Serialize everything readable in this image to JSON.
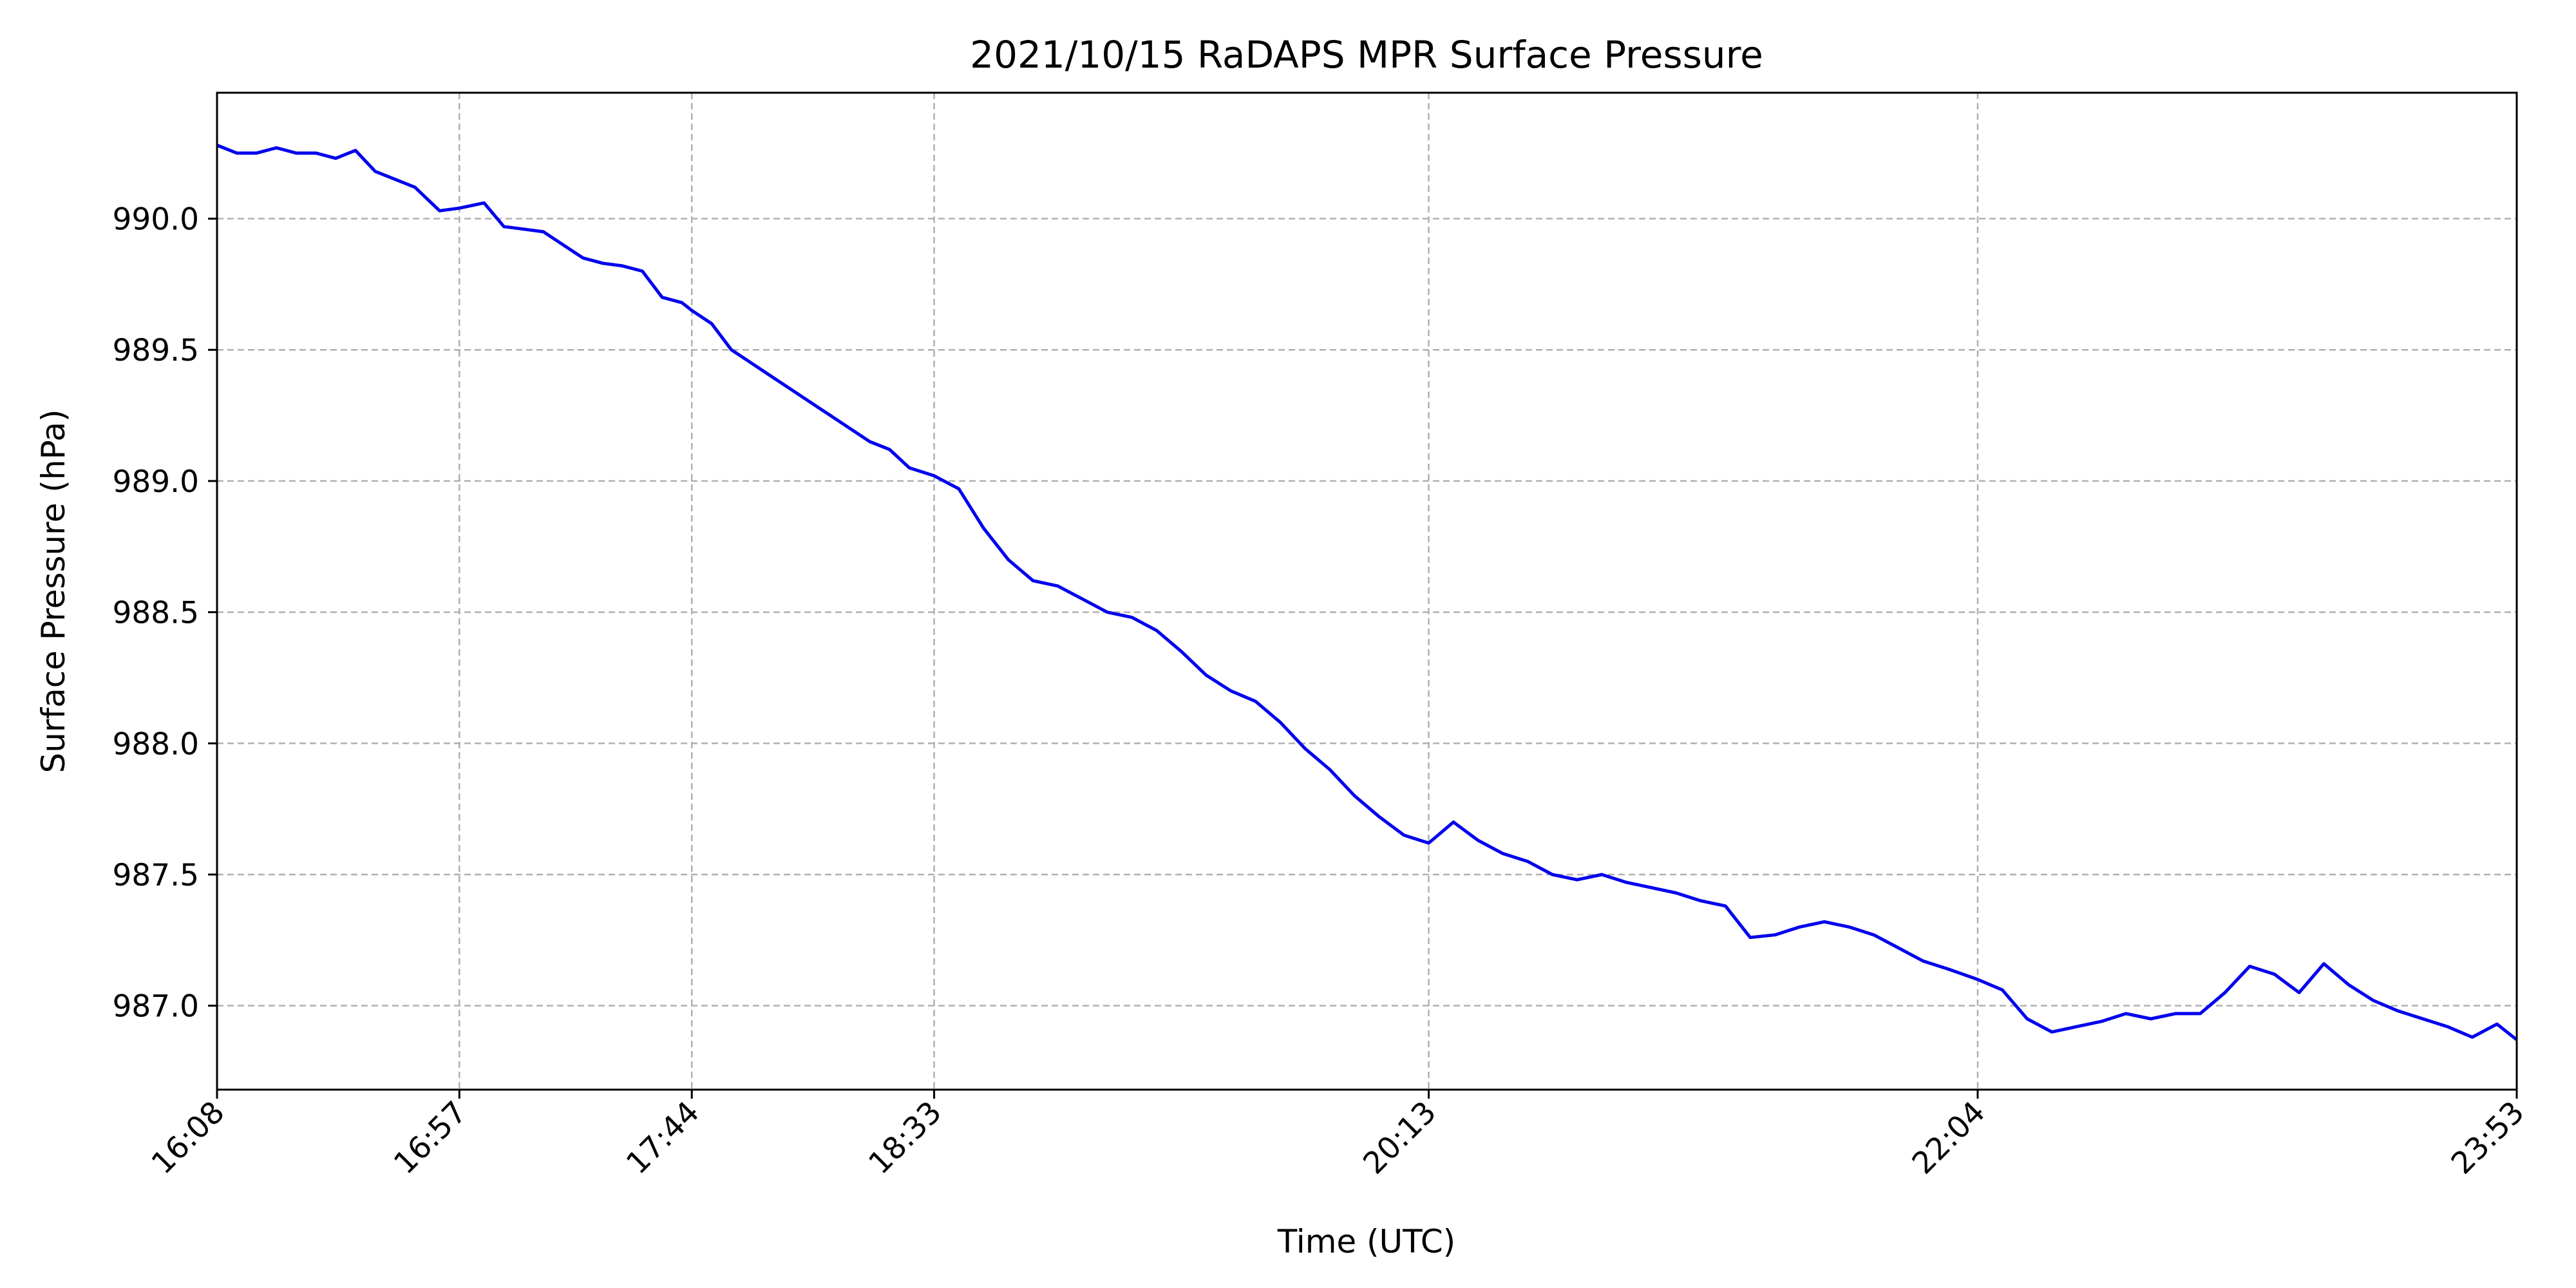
{
  "chart_data": {
    "type": "line",
    "title": "2021/10/15 RaDAPS MPR Surface Pressure",
    "xlabel": "Time (UTC)",
    "ylabel": "Surface Pressure (hPa)",
    "x_ticks": [
      "16:08",
      "16:57",
      "17:44",
      "18:33",
      "20:13",
      "22:04",
      "23:53"
    ],
    "y_ticks": [
      "987.0",
      "987.5",
      "988.0",
      "988.5",
      "989.0",
      "989.5",
      "990.0"
    ],
    "xlim": [
      "16:08",
      "23:53"
    ],
    "ylim": [
      986.68,
      990.48
    ],
    "grid": true,
    "grid_style": "dashed",
    "line_color": "#0000ee",
    "series": [
      {
        "x": [
          "16:08",
          "16:12",
          "16:16",
          "16:20",
          "16:24",
          "16:28",
          "16:32",
          "16:36",
          "16:40",
          "16:44",
          "16:48",
          "16:53",
          "16:57",
          "17:02",
          "17:06",
          "17:10",
          "17:14",
          "17:18",
          "17:22",
          "17:26",
          "17:30",
          "17:34",
          "17:38",
          "17:42",
          "17:44",
          "17:48",
          "17:52",
          "17:56",
          "18:00",
          "18:04",
          "18:08",
          "18:12",
          "18:16",
          "18:20",
          "18:24",
          "18:28",
          "18:33",
          "18:38",
          "18:43",
          "18:48",
          "18:53",
          "18:58",
          "19:03",
          "19:08",
          "19:13",
          "19:18",
          "19:23",
          "19:28",
          "19:33",
          "19:38",
          "19:43",
          "19:48",
          "19:53",
          "19:58",
          "20:03",
          "20:08",
          "20:13",
          "20:18",
          "20:23",
          "20:28",
          "20:33",
          "20:38",
          "20:43",
          "20:48",
          "20:53",
          "20:58",
          "21:03",
          "21:08",
          "21:13",
          "21:18",
          "21:23",
          "21:28",
          "21:33",
          "21:38",
          "21:43",
          "21:48",
          "21:53",
          "21:58",
          "22:04",
          "22:09",
          "22:14",
          "22:19",
          "22:24",
          "22:29",
          "22:34",
          "22:39",
          "22:44",
          "22:49",
          "22:54",
          "22:59",
          "23:04",
          "23:09",
          "23:14",
          "23:19",
          "23:24",
          "23:29",
          "23:34",
          "23:39",
          "23:44",
          "23:49",
          "23:53"
        ],
        "y": [
          990.28,
          990.25,
          990.25,
          990.27,
          990.25,
          990.25,
          990.23,
          990.26,
          990.18,
          990.15,
          990.12,
          990.03,
          990.04,
          990.06,
          989.97,
          989.96,
          989.95,
          989.9,
          989.85,
          989.83,
          989.82,
          989.8,
          989.7,
          989.68,
          989.65,
          989.6,
          989.5,
          989.45,
          989.4,
          989.35,
          989.3,
          989.25,
          989.2,
          989.15,
          989.12,
          989.05,
          989.02,
          988.97,
          988.82,
          988.7,
          988.62,
          988.6,
          988.55,
          988.5,
          988.48,
          988.43,
          988.35,
          988.26,
          988.2,
          988.16,
          988.08,
          987.98,
          987.9,
          987.8,
          987.72,
          987.65,
          987.62,
          987.7,
          987.63,
          987.58,
          987.55,
          987.5,
          987.48,
          987.5,
          987.47,
          987.45,
          987.43,
          987.4,
          987.38,
          987.26,
          987.27,
          987.3,
          987.32,
          987.3,
          987.27,
          987.22,
          987.17,
          987.14,
          987.1,
          987.06,
          986.95,
          986.9,
          986.92,
          986.94,
          986.97,
          986.95,
          986.97,
          986.97,
          987.05,
          987.15,
          987.12,
          987.05,
          987.16,
          987.08,
          987.02,
          986.98,
          986.95,
          986.92,
          986.88,
          986.93,
          986.87
        ]
      }
    ]
  }
}
